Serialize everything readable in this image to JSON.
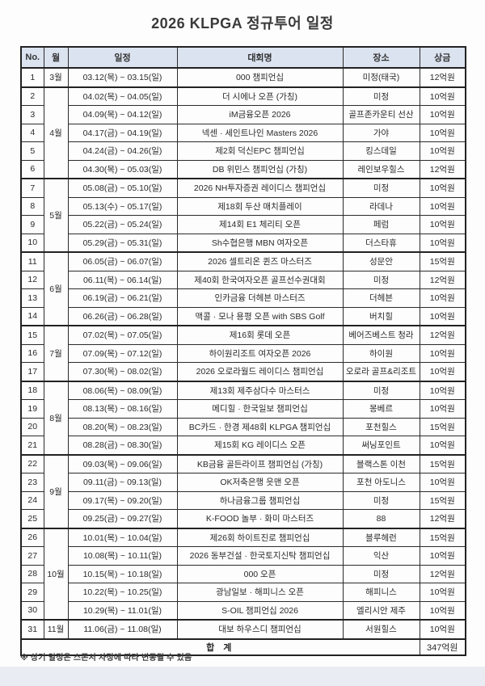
{
  "title": "2026 KLPGA 정규투어 일정",
  "table": {
    "headers": [
      "No.",
      "월",
      "일정",
      "대회명",
      "장소",
      "상금"
    ],
    "rows": [
      {
        "no": "1",
        "month": "3월",
        "span": 1,
        "dates": "03.12(목) ~ 03.15(일)",
        "name": "000 챔피언십",
        "venue": "미정(태국)",
        "prize": "12억원"
      },
      {
        "no": "2",
        "month": "4월",
        "span": 5,
        "dates": "04.02(목) ~ 04.05(일)",
        "name": "더 시에나 오픈 (가칭)",
        "venue": "미정",
        "prize": "10억원"
      },
      {
        "no": "3",
        "dates": "04.09(목) ~ 04.12(일)",
        "name": "iM금융오픈 2026",
        "venue": "골프존카운티 선산",
        "prize": "10억원"
      },
      {
        "no": "4",
        "dates": "04.17(금) ~ 04.19(일)",
        "name": "넥센 · 세인트나인 Masters 2026",
        "venue": "가야",
        "prize": "10억원"
      },
      {
        "no": "5",
        "dates": "04.24(금) ~ 04.26(일)",
        "name": "제2회 덕신EPC 챔피언십",
        "venue": "킹스데일",
        "prize": "10억원"
      },
      {
        "no": "6",
        "dates": "04.30(목) ~ 05.03(일)",
        "name": "DB 위민스 챔피언십 (가칭)",
        "venue": "레인보우힐스",
        "prize": "12억원"
      },
      {
        "no": "7",
        "month": "5월",
        "span": 4,
        "dates": "05.08(금) ~ 05.10(일)",
        "name": "2026 NH투자증권 레이디스 챔피언십",
        "venue": "미정",
        "prize": "10억원"
      },
      {
        "no": "8",
        "dates": "05.13(수) ~ 05.17(일)",
        "name": "제18회 두산 매치플레이",
        "venue": "라데나",
        "prize": "10억원"
      },
      {
        "no": "9",
        "dates": "05.22(금) ~ 05.24(일)",
        "name": "제14회 E1 체리티 오픈",
        "venue": "페럼",
        "prize": "10억원"
      },
      {
        "no": "10",
        "dates": "05.29(금) ~ 05.31(일)",
        "name": "Sh수협은행 MBN 여자오픈",
        "venue": "더스타휴",
        "prize": "10억원"
      },
      {
        "no": "11",
        "month": "6월",
        "span": 4,
        "dates": "06.05(금) ~ 06.07(일)",
        "name": "2026 셀트리온 퀸즈 마스터즈",
        "venue": "성문안",
        "prize": "15억원"
      },
      {
        "no": "12",
        "dates": "06.11(목) ~ 06.14(일)",
        "name": "제40회 한국여자오픈 골프선수권대회",
        "venue": "미정",
        "prize": "12억원"
      },
      {
        "no": "13",
        "dates": "06.19(금) ~ 06.21(일)",
        "name": "인카금융 더헤븐 마스터즈",
        "venue": "더헤븐",
        "prize": "10억원"
      },
      {
        "no": "14",
        "dates": "06.26(금) ~ 06.28(일)",
        "name": "맥콜 · 모나 용평 오픈 with SBS Golf",
        "venue": "버치힐",
        "prize": "10억원"
      },
      {
        "no": "15",
        "month": "7월",
        "span": 3,
        "dates": "07.02(목) ~ 07.05(일)",
        "name": "제16회 롯데 오픈",
        "venue": "베어즈베스트 청라",
        "prize": "12억원"
      },
      {
        "no": "16",
        "dates": "07.09(목) ~ 07.12(일)",
        "name": "하이원리조트 여자오픈 2026",
        "venue": "하이원",
        "prize": "10억원"
      },
      {
        "no": "17",
        "dates": "07.30(목) ~ 08.02(일)",
        "name": "2026 오로라월드 레이디스 챔피언십",
        "venue": "오로라 골프&리조트",
        "prize": "10억원"
      },
      {
        "no": "18",
        "month": "8월",
        "span": 4,
        "dates": "08.06(목) ~ 08.09(일)",
        "name": "제13회 제주삼다수 마스터스",
        "venue": "미정",
        "prize": "10억원"
      },
      {
        "no": "19",
        "dates": "08.13(목) ~ 08.16(일)",
        "name": "메디힐 · 한국일보 챔피언십",
        "venue": "몽베르",
        "prize": "10억원"
      },
      {
        "no": "20",
        "dates": "08.20(목) ~ 08.23(일)",
        "name": "BC카드 · 한경 제48회 KLPGA 챔피언십",
        "venue": "포천힐스",
        "prize": "15억원"
      },
      {
        "no": "21",
        "dates": "08.28(금) ~ 08.30(일)",
        "name": "제15회 KG 레이디스 오픈",
        "venue": "써닝포인트",
        "prize": "10억원"
      },
      {
        "no": "22",
        "month": "9월",
        "span": 4,
        "dates": "09.03(목) ~ 09.06(일)",
        "name": "KB금융 골든라이프 챔피언십 (가칭)",
        "venue": "블랙스톤 이천",
        "prize": "15억원"
      },
      {
        "no": "23",
        "dates": "09.11(금) ~ 09.13(일)",
        "name": "OK저축은행 읏맨 오픈",
        "venue": "포천 아도니스",
        "prize": "10억원"
      },
      {
        "no": "24",
        "dates": "09.17(목) ~ 09.20(일)",
        "name": "하나금융그룹 챔피언십",
        "venue": "미정",
        "prize": "15억원"
      },
      {
        "no": "25",
        "dates": "09.25(금) ~ 09.27(일)",
        "name": "K-FOOD 놀부 · 화미 마스터즈",
        "venue": "88",
        "prize": "12억원"
      },
      {
        "no": "26",
        "month": "10월",
        "span": 5,
        "dates": "10.01(목) ~ 10.04(일)",
        "name": "제26회 하이트진로 챔피언십",
        "venue": "블루헤런",
        "prize": "15억원"
      },
      {
        "no": "27",
        "dates": "10.08(목) ~ 10.11(일)",
        "name": "2026 동부건설 · 한국토지신탁 챔피언십",
        "venue": "익산",
        "prize": "10억원"
      },
      {
        "no": "28",
        "dates": "10.15(목) ~ 10.18(일)",
        "name": "000 오픈",
        "venue": "미정",
        "prize": "12억원"
      },
      {
        "no": "29",
        "dates": "10.22(목) ~ 10.25(일)",
        "name": "광남일보 · 해피니스 오픈",
        "venue": "해피니스",
        "prize": "10억원"
      },
      {
        "no": "30",
        "dates": "10.29(목) ~ 11.01(일)",
        "name": "S-OIL 챔피언십 2026",
        "venue": "엘리시안 제주",
        "prize": "10억원"
      },
      {
        "no": "31",
        "month": "11월",
        "span": 1,
        "dates": "11.06(금) ~ 11.08(일)",
        "name": "대보 하우스디 챔피언십",
        "venue": "서원힐스",
        "prize": "10억원"
      }
    ],
    "total_label": "합 계",
    "total_value": "347억원"
  },
  "footnote": "※ 상기 일정은 스폰서 사정에 따라 변동될 수 있음",
  "colors": {
    "header_bg": "#dbe3f0",
    "border": "#222222",
    "bottom_band": "#e9edf3"
  }
}
